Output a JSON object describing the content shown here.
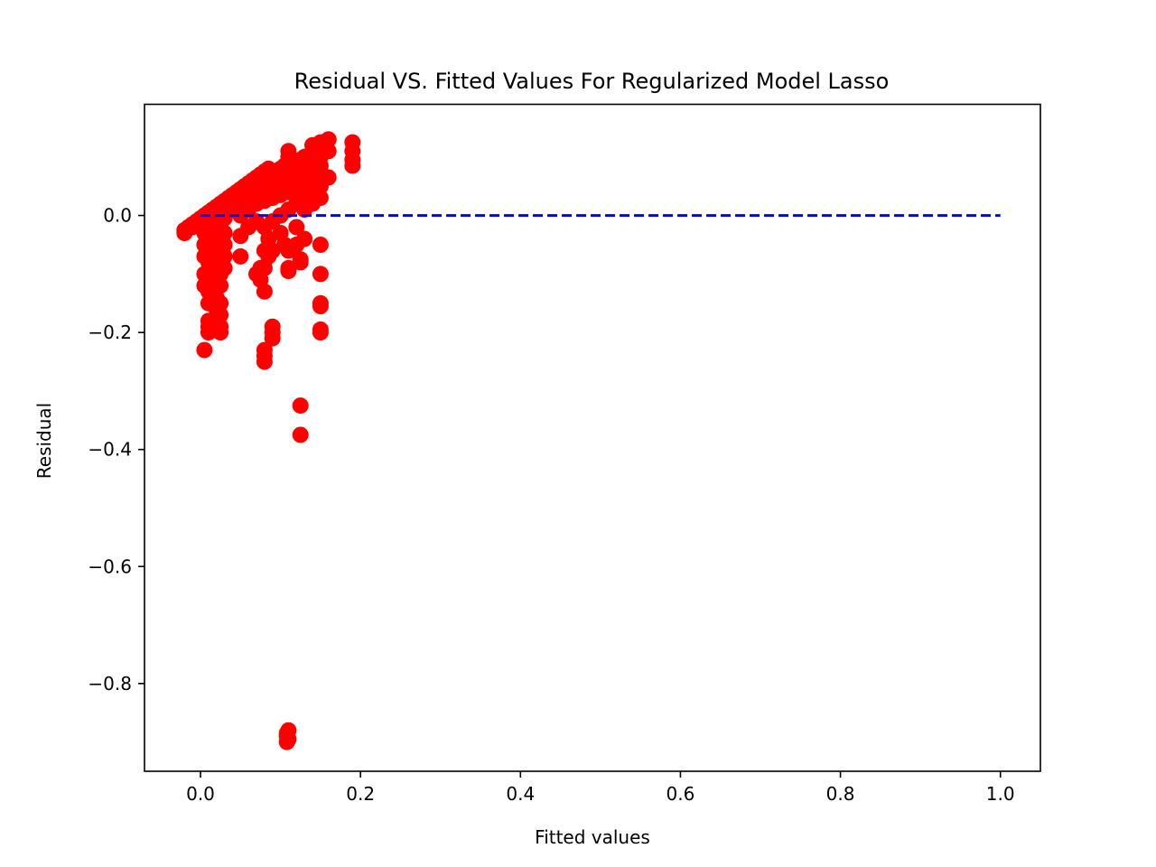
{
  "chart_data": {
    "type": "scatter",
    "title": "Residual VS. Fitted Values For Regularized Model Lasso",
    "xlabel": "Fitted values",
    "ylabel": "Residual",
    "xlim": [
      -0.07,
      1.05
    ],
    "ylim": [
      -0.95,
      0.19
    ],
    "xticks": [
      0.0,
      0.2,
      0.4,
      0.6,
      0.8,
      1.0
    ],
    "xtick_labels": [
      "0.0",
      "0.2",
      "0.4",
      "0.6",
      "0.8",
      "1.0"
    ],
    "yticks": [
      0.0,
      -0.2,
      -0.4,
      -0.6,
      -0.8
    ],
    "ytick_labels": [
      "0.0",
      "−0.2",
      "−0.4",
      "−0.6",
      "−0.8"
    ],
    "grid": false,
    "colors": {
      "points": "#ff0000",
      "reference_line": "#0000ff"
    },
    "reference_line": {
      "x": [
        0.0,
        1.0
      ],
      "y": [
        0.0,
        0.0
      ],
      "style": "dashed"
    },
    "series": [
      {
        "x": [
          -0.02,
          -0.015,
          -0.01,
          -0.005,
          0.0,
          0.005,
          0.01,
          0.015,
          0.02,
          0.025,
          0.03,
          0.035,
          0.04,
          0.045,
          0.05,
          0.055,
          0.06,
          0.065,
          0.07,
          0.075,
          0.08,
          0.085,
          0.09,
          0.095,
          0.1,
          0.105,
          0.11,
          0.115,
          0.12,
          0.125,
          0.13,
          0.135,
          0.14,
          0.145,
          0.15,
          0.155,
          0.16,
          -0.02,
          -0.01,
          0.0,
          0.01,
          0.02,
          0.03,
          0.04,
          0.05,
          0.06,
          0.07,
          0.08,
          0.09,
          0.1,
          0.11,
          0.12,
          0.13,
          0.14,
          0.15,
          0.03,
          0.05,
          0.06,
          0.07,
          0.08,
          0.09,
          0.1,
          0.11,
          0.12,
          0.13,
          0.14,
          0.15,
          0.16,
          0.07,
          0.08,
          0.09,
          0.1,
          0.11,
          0.12,
          0.13,
          0.14,
          0.15,
          0.09,
          0.11,
          0.12,
          0.14,
          0.15,
          0.16,
          0.11,
          0.14,
          0.15,
          0.16,
          0.19,
          0.19,
          0.19,
          0.19,
          0.1,
          0.12,
          0.13,
          0.14,
          0.15,
          0.005,
          0.005,
          0.005,
          0.005,
          0.005,
          0.005,
          0.005,
          0.01,
          0.01,
          0.01,
          0.01,
          0.01,
          0.01,
          0.01,
          0.01,
          0.01,
          0.01,
          0.01,
          0.015,
          0.015,
          0.015,
          0.015,
          0.015,
          0.015,
          0.015,
          0.02,
          0.02,
          0.02,
          0.02,
          0.02,
          0.02,
          0.02,
          0.02,
          0.025,
          0.025,
          0.025,
          0.025,
          0.025,
          0.025,
          0.025,
          0.025,
          0.025,
          0.025,
          0.03,
          0.03,
          0.03,
          0.03,
          0.05,
          0.05,
          0.06,
          0.07,
          0.075,
          0.075,
          0.08,
          0.08,
          0.08,
          0.08,
          0.08,
          0.08,
          0.085,
          0.085,
          0.09,
          0.09,
          0.09,
          0.09,
          0.1,
          0.105,
          0.11,
          0.11,
          0.11,
          0.12,
          0.125,
          0.125,
          0.125,
          0.125,
          0.13,
          0.15,
          0.15,
          0.15,
          0.15,
          0.15,
          0.15,
          0.108,
          0.108,
          0.108,
          0.11,
          0.11
        ],
        "y": [
          -0.025,
          -0.02,
          -0.015,
          -0.01,
          -0.005,
          0.0,
          0.005,
          0.01,
          0.015,
          0.02,
          0.025,
          0.03,
          0.035,
          0.04,
          0.045,
          0.05,
          0.055,
          0.06,
          0.065,
          0.07,
          0.075,
          0.08,
          0.07,
          0.075,
          0.08,
          0.085,
          0.09,
          0.085,
          0.09,
          0.095,
          0.1,
          0.1,
          0.11,
          0.115,
          0.12,
          0.125,
          0.13,
          -0.03,
          -0.02,
          -0.01,
          0.0,
          0.005,
          0.01,
          0.015,
          0.02,
          0.03,
          0.04,
          0.05,
          0.06,
          0.055,
          0.06,
          0.07,
          0.075,
          0.08,
          0.085,
          -0.005,
          0.0,
          0.01,
          0.02,
          0.025,
          0.03,
          0.035,
          0.04,
          0.045,
          0.05,
          0.055,
          0.06,
          0.065,
          -0.01,
          -0.02,
          -0.01,
          0.0,
          0.01,
          0.02,
          0.03,
          0.02,
          0.03,
          0.04,
          0.1,
          0.08,
          0.09,
          0.1,
          0.11,
          0.11,
          0.12,
          0.125,
          0.13,
          0.125,
          0.11,
          0.095,
          0.085,
          0.0,
          -0.02,
          0.01,
          0.04,
          0.05,
          -0.01,
          -0.03,
          -0.05,
          -0.07,
          -0.1,
          -0.12,
          -0.23,
          -0.02,
          -0.04,
          -0.06,
          -0.08,
          -0.1,
          -0.11,
          -0.13,
          -0.15,
          -0.18,
          -0.19,
          -0.2,
          -0.03,
          -0.05,
          -0.07,
          -0.09,
          -0.11,
          -0.14,
          -0.18,
          -0.02,
          -0.04,
          -0.06,
          -0.08,
          -0.1,
          -0.12,
          -0.14,
          -0.16,
          -0.02,
          -0.04,
          -0.06,
          -0.08,
          -0.1,
          -0.12,
          -0.15,
          -0.17,
          -0.19,
          -0.2,
          -0.03,
          -0.05,
          -0.07,
          -0.09,
          -0.035,
          -0.07,
          -0.02,
          -0.1,
          -0.09,
          -0.11,
          -0.06,
          -0.09,
          -0.13,
          -0.23,
          -0.24,
          -0.25,
          -0.04,
          -0.07,
          -0.06,
          -0.19,
          -0.2,
          -0.21,
          -0.03,
          -0.05,
          -0.06,
          -0.09,
          -0.095,
          -0.05,
          -0.08,
          -0.075,
          -0.325,
          -0.375,
          -0.04,
          -0.05,
          -0.1,
          -0.15,
          -0.155,
          -0.195,
          -0.2,
          -0.885,
          -0.89,
          -0.9,
          -0.895,
          -0.88
        ]
      }
    ]
  }
}
